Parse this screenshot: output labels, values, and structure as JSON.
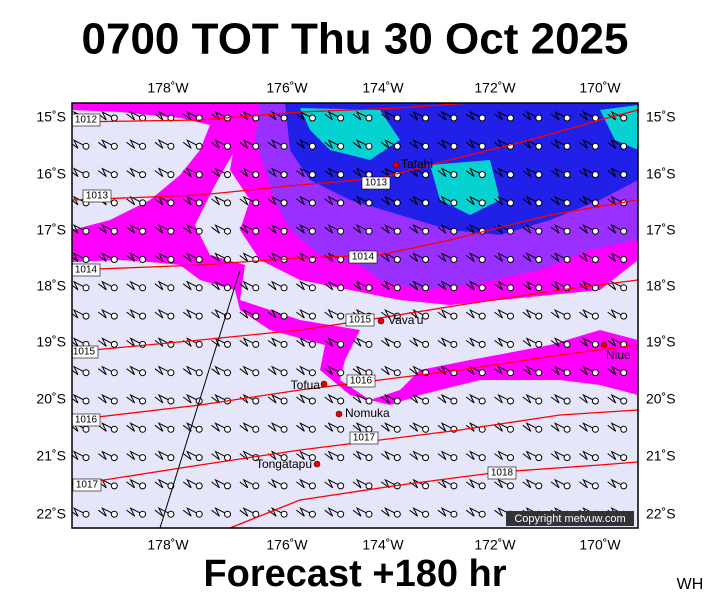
{
  "header": {
    "title": "0700 TOT Thu 30 Oct 2025"
  },
  "footer": {
    "forecast": "Forecast +180 hr",
    "initials": "WH"
  },
  "map": {
    "lon_labels": [
      "178˚W",
      "176˚W",
      "174˚W",
      "172˚W",
      "170˚W"
    ],
    "lat_labels": [
      "15˚S",
      "16˚S",
      "17˚S",
      "18˚S",
      "19˚S",
      "20˚S",
      "21˚S",
      "22˚S"
    ],
    "places": [
      {
        "label": "Tafahi"
      },
      {
        "label": "Vava'u"
      },
      {
        "label": "Niue"
      },
      {
        "label": "Tofua"
      },
      {
        "label": "Nomuka"
      },
      {
        "label": "Tongatapu"
      }
    ],
    "isobar_labels": [
      "1012",
      "1013",
      "1013",
      "1014",
      "1014",
      "1015",
      "1015",
      "1016",
      "1016",
      "1017",
      "1017",
      "1018"
    ],
    "copyright": "Copyright metvuw.com"
  }
}
